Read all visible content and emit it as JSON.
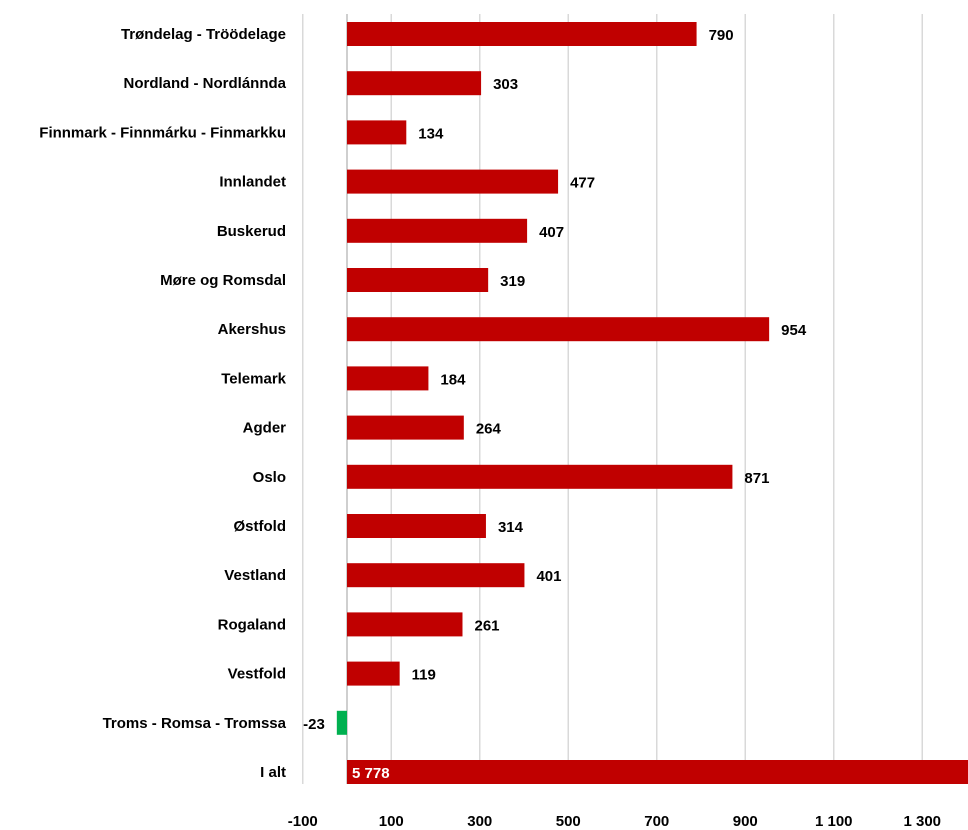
{
  "chart_data": {
    "type": "bar",
    "orientation": "horizontal",
    "categories": [
      "Trøndelag - Tröödelage",
      "Nordland - Nordlánnda",
      "Finnmark - Finnmárku - Finmarkku",
      "Innlandet",
      "Buskerud",
      "Møre og Romsdal",
      "Akershus",
      "Telemark",
      "Agder",
      "Oslo",
      "Østfold",
      "Vestland",
      "Rogaland",
      "Vestfold",
      "Troms - Romsa - Tromssa",
      "I alt"
    ],
    "values": [
      790,
      303,
      134,
      477,
      407,
      319,
      954,
      184,
      264,
      871,
      314,
      401,
      261,
      119,
      -23,
      5778
    ],
    "value_labels": [
      "790",
      "303",
      "134",
      "477",
      "407",
      "319",
      "954",
      "184",
      "264",
      "871",
      "314",
      "401",
      "261",
      "119",
      "-23",
      "5 778"
    ],
    "xlim": [
      -100,
      1400
    ],
    "xticks": [
      -100,
      100,
      300,
      500,
      700,
      900,
      1100,
      1300
    ],
    "xtick_labels": [
      "-100",
      "100",
      "300",
      "500",
      "700",
      "900",
      "1 100",
      "1 300"
    ],
    "grid": true,
    "colors": {
      "positive": "#c00000",
      "negative": "#00b050",
      "grid": "#d9d9d9",
      "label_on_bar": "#ffffff"
    }
  }
}
